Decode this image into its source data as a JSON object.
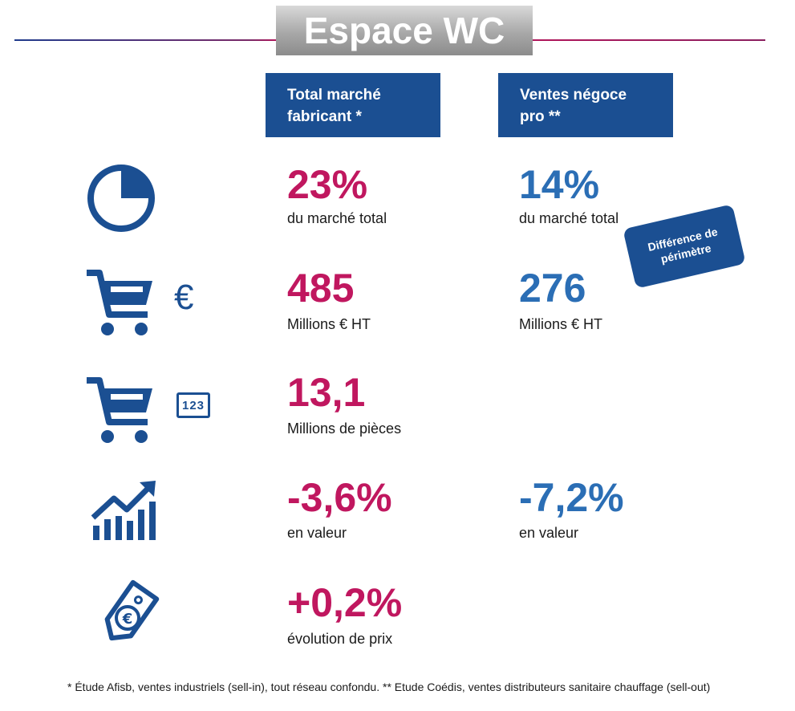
{
  "title": "Espace WC",
  "headers": {
    "market": [
      "Total marché",
      "fabricant *"
    ],
    "trade": [
      "Ventes négoce",
      "pro **"
    ]
  },
  "rows": {
    "share": {
      "market_value": "23%",
      "market_label": "du marché total",
      "trade_value": "14%",
      "trade_label": "du marché total"
    },
    "revenue": {
      "market_value": "485",
      "market_label": "Millions € HT",
      "trade_value": "276",
      "trade_label": "Millions € HT"
    },
    "units": {
      "market_value": "13,1",
      "market_label": "Millions de pièces"
    },
    "growth": {
      "market_value": "-3,6%",
      "market_label": "en valeur",
      "trade_value": "-7,2%",
      "trade_label": "en valeur"
    },
    "price": {
      "market_value": "+0,2%",
      "market_label": "évolution de prix"
    }
  },
  "badge": [
    "Différence de",
    "périmètre"
  ],
  "icons": {
    "euro_symbol": "€",
    "counter_text": "123",
    "names": [
      "pie-chart-icon",
      "shopping-cart-euro-icon",
      "shopping-cart-count-icon",
      "bar-chart-growth-icon",
      "price-tag-euro-icon"
    ]
  },
  "colors": {
    "navy": "#1b4f92",
    "magenta": "#c0175f",
    "blue": "#2b6eb5"
  },
  "footnote": "* Étude Afisb, ventes industriels (sell-in), tout réseau confondu. ** Etude Coédis, ventes distributeurs sanitaire chauffage (sell-out)"
}
